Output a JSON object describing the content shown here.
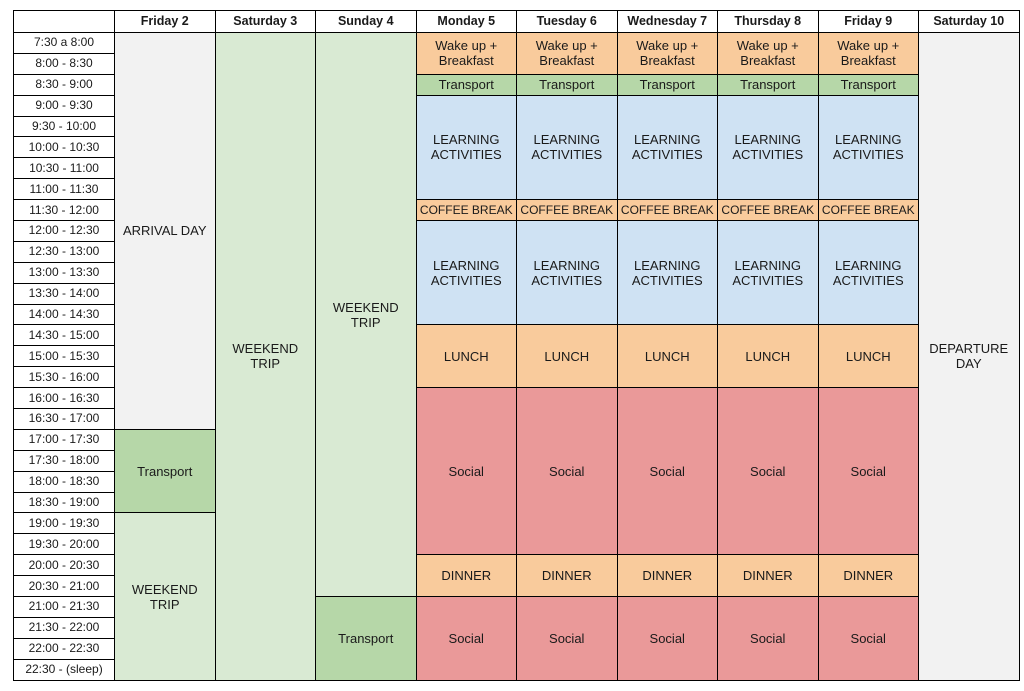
{
  "schedule": {
    "days": [
      "Friday 2",
      "Saturday 3",
      "Sunday 4",
      "Monday 5",
      "Tuesday 6",
      "Wednesday 7",
      "Thursday 8",
      "Friday 9",
      "Saturday 10"
    ],
    "times": [
      "7:30 a 8:00",
      "8:00 - 8:30",
      "8:30 - 9:00",
      "9:00 - 9:30",
      "9:30 - 10:00",
      "10:00 - 10:30",
      "10:30 - 11:00",
      "11:00 - 11:30",
      "11:30 - 12:00",
      "12:00 - 12:30",
      "12:30 - 13:00",
      "13:00 - 13:30",
      "13:30 - 14:00",
      "14:00 - 14:30",
      "14:30 - 15:00",
      "15:00 - 15:30",
      "15:30 - 16:00",
      "16:00 - 16:30",
      "16:30 - 17:00",
      "17:00 - 17:30",
      "17:30 - 18:00",
      "18:00 - 18:30",
      "18:30 - 19:00",
      "19:00 - 19:30",
      "19:30 - 20:00",
      "20:00 - 20:30",
      "20:30 - 21:00",
      "21:00 - 21:30",
      "21:30 - 22:00",
      "22:00 - 22:30",
      "22:30 - (sleep)"
    ],
    "blocks": {
      "friday": {
        "arrival": "ARRIVAL DAY",
        "transport": "Transport",
        "weekend_trip": "WEEKEND\nTRIP"
      },
      "saturday": {
        "weekend_trip": "WEEKEND\nTRIP"
      },
      "sunday": {
        "weekend_trip": "WEEKEND\nTRIP",
        "transport": "Transport"
      },
      "weekday": {
        "wake_up": "Wake up +\nBreakfast",
        "transport": "Transport",
        "learning": "LEARNING\nACTIVITIES",
        "coffee_break": "COFFEE BREAK",
        "lunch": "LUNCH",
        "social": "Social",
        "dinner": "DINNER"
      },
      "departure": "DEPARTURE\nDAY"
    }
  },
  "colors": {
    "grey": "#f2f2f2",
    "light_green": "#d9ead3",
    "green": "#b6d7a8",
    "orange": "#f9cb9c",
    "blue": "#cfe2f3",
    "red": "#ea9999"
  }
}
